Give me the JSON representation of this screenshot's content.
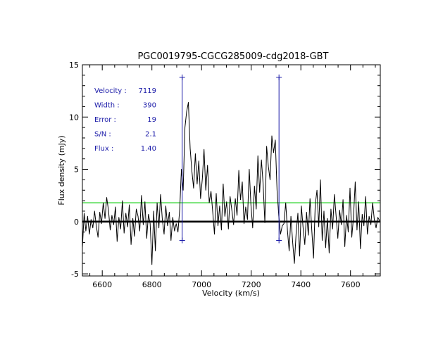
{
  "chart_data": {
    "type": "line",
    "title": "PGC0019795-CGCG285009-cdg2018-GBT",
    "xlabel": "Velocity (km/s)",
    "ylabel": "Flux density (mJy)",
    "xlim": [
      6520,
      7720
    ],
    "ylim": [
      -5.2,
      15
    ],
    "x_ticks": [
      6600,
      6800,
      7000,
      7200,
      7400,
      7600
    ],
    "y_ticks": [
      -5,
      0,
      5,
      10,
      15
    ],
    "grid": false,
    "colors": {
      "spectrum": "#000000",
      "baseline": "#000000",
      "threshold": "#00cc00",
      "markers": "#1a1aa8",
      "annotation": "#1a1aa8"
    },
    "baseline_y": 0,
    "threshold_y": 1.8,
    "markers": [
      {
        "x": 6922,
        "y_top": 13.8,
        "y_bottom": -1.8
      },
      {
        "x": 7312,
        "y_top": 13.8,
        "y_bottom": -1.8
      }
    ],
    "annotations": [
      {
        "label": "Velocity :",
        "value": "7119"
      },
      {
        "label": "Width :",
        "value": "390"
      },
      {
        "label": "Error :",
        "value": "19"
      },
      {
        "label": "S/N :",
        "value": "2.1"
      },
      {
        "label": "Flux :",
        "value": "1.40"
      }
    ],
    "series": [
      {
        "x": [
          6520,
          6527,
          6534,
          6541,
          6548,
          6555,
          6562,
          6569,
          6576,
          6583,
          6590,
          6597,
          6604,
          6611,
          6618,
          6625,
          6632,
          6639,
          6646,
          6653,
          6660,
          6667,
          6674,
          6681,
          6688,
          6695,
          6702,
          6709,
          6716,
          6723,
          6730,
          6737,
          6744,
          6751,
          6758,
          6765,
          6772,
          6779,
          6786,
          6793,
          6800,
          6807,
          6814,
          6821,
          6828,
          6835,
          6842,
          6849,
          6856,
          6863,
          6870,
          6877,
          6884,
          6891,
          6898,
          6905,
          6912,
          6919,
          6926,
          6933,
          6940,
          6947,
          6954,
          6961,
          6968,
          6975,
          6982,
          6989,
          6996,
          7003,
          7010,
          7017,
          7024,
          7031,
          7038,
          7045,
          7052,
          7059,
          7066,
          7073,
          7080,
          7087,
          7094,
          7101,
          7108,
          7115,
          7122,
          7129,
          7136,
          7143,
          7150,
          7157,
          7164,
          7171,
          7178,
          7185,
          7192,
          7199,
          7206,
          7213,
          7220,
          7227,
          7234,
          7241,
          7248,
          7255,
          7262,
          7269,
          7276,
          7283,
          7290,
          7297,
          7304,
          7311,
          7318,
          7325,
          7332,
          7339,
          7346,
          7353,
          7360,
          7367,
          7374,
          7381,
          7388,
          7395,
          7402,
          7409,
          7416,
          7423,
          7430,
          7437,
          7444,
          7451,
          7458,
          7465,
          7472,
          7479,
          7486,
          7493,
          7500,
          7507,
          7514,
          7521,
          7528,
          7535,
          7542,
          7549,
          7556,
          7563,
          7570,
          7577,
          7584,
          7591,
          7598,
          7605,
          7612,
          7619,
          7626,
          7633,
          7640,
          7647,
          7654,
          7661,
          7668,
          7675,
          7682,
          7689,
          7696,
          7703,
          7710,
          7717
        ],
        "y": [
          -2.5,
          0.8,
          -0.9,
          0.5,
          -1.2,
          0.2,
          -0.6,
          1.0,
          -0.4,
          -1.5,
          0.9,
          -0.2,
          1.8,
          0.3,
          2.3,
          1.1,
          -0.8,
          0.6,
          -0.3,
          1.4,
          -1.9,
          0.4,
          -0.7,
          2.0,
          -1.1,
          0.8,
          -0.5,
          1.6,
          -2.2,
          0.3,
          -1.4,
          1.2,
          0.5,
          -0.9,
          2.5,
          -0.3,
          1.9,
          -1.6,
          0.7,
          -0.2,
          -4.1,
          1.0,
          -2.8,
          1.8,
          -0.6,
          2.6,
          0.2,
          -1.2,
          1.5,
          -0.4,
          0.9,
          -1.8,
          0.4,
          -0.9,
          -0.2,
          -1.0,
          1.2,
          5.0,
          3.0,
          9.0,
          10.5,
          11.4,
          7.0,
          4.8,
          3.2,
          6.5,
          3.6,
          5.8,
          2.2,
          4.1,
          6.9,
          3.0,
          5.4,
          1.8,
          2.9,
          0.9,
          -1.2,
          2.7,
          -0.4,
          1.5,
          -0.8,
          3.6,
          0.5,
          1.9,
          -0.7,
          2.4,
          1.1,
          -0.3,
          2.2,
          0.6,
          4.9,
          2.1,
          3.8,
          -0.2,
          1.4,
          0.2,
          5.0,
          1.6,
          -0.6,
          3.4,
          1.2,
          6.3,
          2.8,
          5.9,
          3.6,
          -0.1,
          7.2,
          5.3,
          4.0,
          8.2,
          6.6,
          7.8,
          3.0,
          0.6,
          -1.2,
          -0.4,
          -0.2,
          1.8,
          -0.9,
          -2.8,
          0.5,
          -2.0,
          -4.0,
          -1.1,
          0.8,
          -3.3,
          1.5,
          -0.6,
          -2.2,
          0.9,
          -1.3,
          2.2,
          -0.8,
          -3.5,
          1.6,
          3.0,
          -0.5,
          4.0,
          -1.8,
          1.0,
          -2.5,
          0.3,
          -3.0,
          1.2,
          -0.7,
          2.6,
          0.5,
          -1.6,
          1.1,
          -0.3,
          2.1,
          -2.4,
          0.6,
          -1.0,
          3.2,
          -1.5,
          0.4,
          3.8,
          -0.8,
          1.9,
          -2.6,
          0.7,
          -0.4,
          2.4,
          -1.2,
          0.5,
          -0.3,
          1.8,
          0.2,
          -0.6,
          0.4,
          0.1
        ]
      }
    ]
  }
}
